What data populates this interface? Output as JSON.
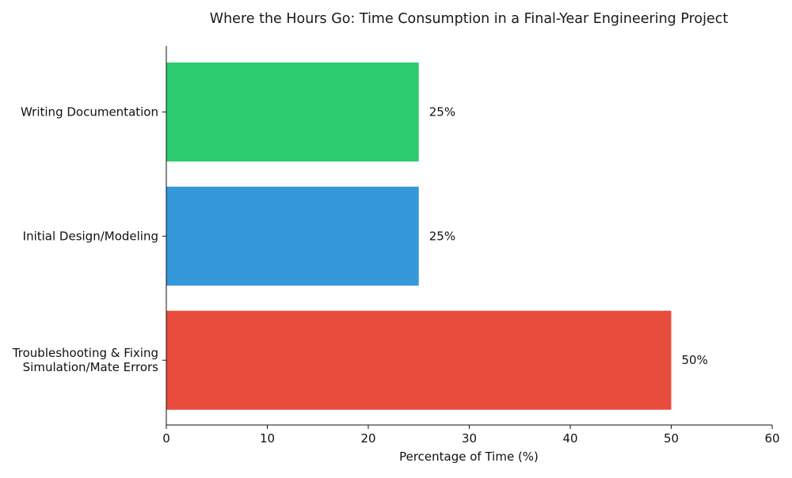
{
  "chart_data": {
    "type": "bar",
    "orientation": "horizontal",
    "title": "Where the Hours Go: Time Consumption in a Final-Year Engineering Project",
    "xlabel": "Percentage of Time (%)",
    "ylabel": "",
    "xlim": [
      0,
      60
    ],
    "xticks": [
      0,
      10,
      20,
      30,
      40,
      50,
      60
    ],
    "grid": false,
    "categories": [
      "Writing Documentation",
      "Initial Design/Modeling",
      "Troubleshooting & Fixing\nSimulation/Mate Errors"
    ],
    "values": [
      25,
      25,
      50
    ],
    "value_labels": [
      "25%",
      "25%",
      "50%"
    ],
    "colors": [
      "#2ecc71",
      "#3498db",
      "#e74c3c"
    ]
  }
}
